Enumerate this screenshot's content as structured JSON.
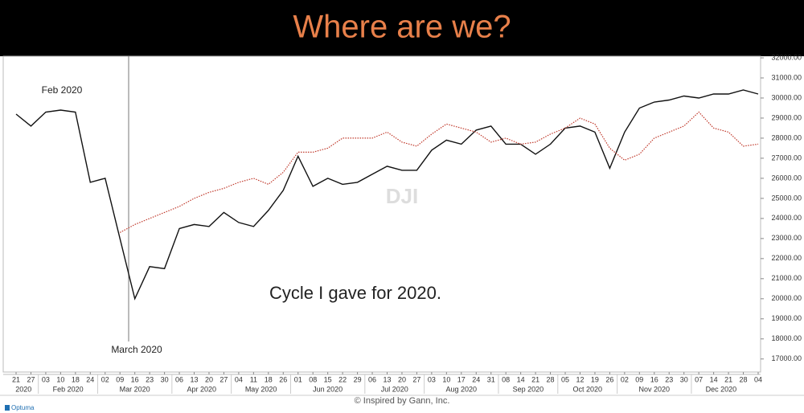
{
  "chart_data": {
    "type": "line",
    "title": "Where are we?",
    "watermark": "DJI",
    "annotations": [
      "Feb 2020",
      "March 2020",
      "Cycle I gave for 2020."
    ],
    "footer": "© Inspired by Gann, Inc.",
    "brand": "Optuma",
    "categories": [
      "21",
      "27",
      "03",
      "10",
      "18",
      "24",
      "02",
      "09",
      "16",
      "23",
      "30",
      "06",
      "13",
      "20",
      "27",
      "04",
      "11",
      "18",
      "26",
      "01",
      "08",
      "15",
      "22",
      "29",
      "06",
      "13",
      "20",
      "27",
      "03",
      "10",
      "17",
      "24",
      "31",
      "08",
      "14",
      "21",
      "28",
      "05",
      "12",
      "19",
      "26",
      "02",
      "09",
      "16",
      "23",
      "30",
      "07",
      "14",
      "21",
      "28",
      "04"
    ],
    "month_labels": [
      "2020",
      "Feb 2020",
      "Mar 2020",
      "Apr 2020",
      "May 2020",
      "Jun 2020",
      "Jul 2020",
      "Aug 2020",
      "Sep 2020",
      "Oct 2020",
      "Nov 2020",
      "Dec 2020"
    ],
    "series": [
      {
        "name": "DJI",
        "color": "#111111",
        "values": [
          29200,
          28600,
          29300,
          29400,
          29300,
          25800,
          26000,
          23000,
          20000,
          21600,
          21500,
          23500,
          23700,
          23600,
          24300,
          23800,
          23600,
          24400,
          25400,
          27100,
          25600,
          26000,
          25700,
          25800,
          26200,
          26600,
          26400,
          26400,
          27400,
          27900,
          27700,
          28400,
          28600,
          27700,
          27700,
          27200,
          27700,
          28500,
          28600,
          28300,
          26500,
          28300,
          29500,
          29800,
          29900,
          30100,
          30000,
          30200,
          30200,
          30400,
          30200
        ]
      },
      {
        "color": "#c0392b",
        "values": [
          null,
          null,
          null,
          null,
          null,
          null,
          null,
          23300,
          23700,
          24000,
          24300,
          24600,
          25000,
          25300,
          25500,
          25800,
          26000,
          25700,
          26300,
          27300,
          27300,
          27500,
          28000,
          28000,
          28000,
          28300,
          27800,
          27600,
          28200,
          28700,
          28500,
          28300,
          27800,
          28000,
          27700,
          27800,
          28200,
          28500,
          29000,
          28700,
          27500,
          26900,
          27200,
          28000,
          28300,
          28600,
          29300,
          28500,
          28300,
          27600,
          27700
        ]
      }
    ],
    "ylim": [
      16350,
      32080
    ],
    "yticks": [
      {
        "value": 17000,
        "label": "17000.00"
      },
      {
        "value": 18000,
        "label": "18000.00"
      },
      {
        "value": 19000,
        "label": "19000.00"
      },
      {
        "value": 20000,
        "label": "20000.00"
      },
      {
        "value": 21000,
        "label": "21000.00"
      },
      {
        "value": 22000,
        "label": "22000.00"
      },
      {
        "value": 23000,
        "label": "23000.00"
      },
      {
        "value": 24000,
        "label": "24000.00"
      },
      {
        "value": 25000,
        "label": "25000.00"
      },
      {
        "value": 26000,
        "label": "26000.00"
      },
      {
        "value": 27000,
        "label": "27000.00"
      },
      {
        "value": 28000,
        "label": "28000.00"
      },
      {
        "value": 29000,
        "label": "29000.00"
      },
      {
        "value": 30000,
        "label": "30000.00"
      },
      {
        "value": 31000,
        "label": "31000.00"
      },
      {
        "value": 32000,
        "label": "32000.00"
      }
    ],
    "grid": false
  }
}
